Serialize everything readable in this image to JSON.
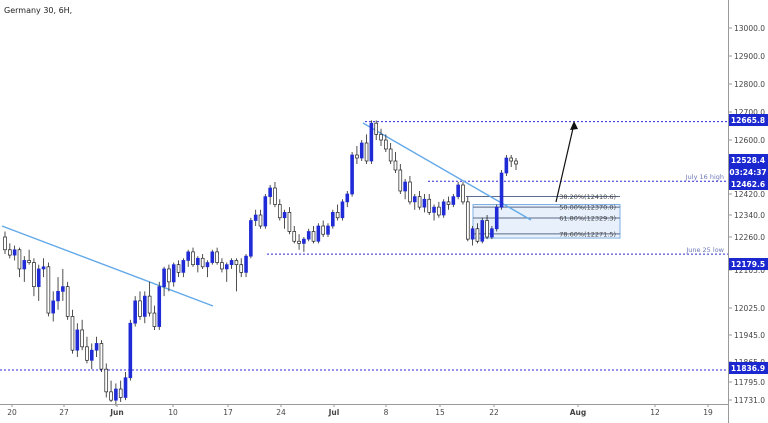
{
  "chart_data": {
    "type": "candlestick",
    "title": "Germany 30, 6H,",
    "y_axis": {
      "range": [
        11725,
        13090
      ],
      "ticks": [
        13000.0,
        12900.0,
        12800.0,
        12700.0,
        12600.0,
        12420.0,
        12340.0,
        12260.0,
        12105.0,
        12025.0,
        11945.0,
        11865.0,
        11795.0,
        11731.0
      ],
      "tick_labels": [
        "13000.0",
        "12900.0",
        "12800.0",
        "12700.0",
        "12600.0",
        "12420.0",
        "12340.0",
        "12260.0",
        "12105.0",
        "12025.0",
        "11945.0",
        "11865.0",
        "11795.0",
        "11731.0"
      ]
    },
    "x_axis": {
      "ticks": [
        "20",
        "27",
        "Jun",
        "10",
        "17",
        "24",
        "Jul",
        "8",
        "15",
        "22",
        "Aug",
        "12",
        "19"
      ],
      "bold_ticks": [
        "Jun",
        "Jul",
        "Aug"
      ]
    },
    "price_tags": [
      {
        "label": "12665.8",
        "value": 12665.8
      },
      {
        "label": "12528.4",
        "value": 12528.4
      },
      {
        "label": "03:24:37",
        "value": 12497
      },
      {
        "label": "12462.6",
        "value": 12462.6
      },
      {
        "label": "12179.5",
        "value": 12179.5
      },
      {
        "label": "11836.9",
        "value": 11836.9
      }
    ],
    "horizontal_levels": [
      {
        "value": 12665.8,
        "label": ""
      },
      {
        "value": 12462.6,
        "label": "July 16 high"
      },
      {
        "value": 12179.5,
        "label": "June 25 low"
      },
      {
        "value": 11836.9,
        "label": ""
      }
    ],
    "fibonacci": [
      {
        "label": "38.20%(12410.6)",
        "value": 12410.6
      },
      {
        "label": "50.00%(12370.0)",
        "value": 12370.0
      },
      {
        "label": "61.80%(12329.3)",
        "value": 12329.3
      },
      {
        "label": "78.60%(12271.5)",
        "value": 12271.5
      }
    ],
    "candles": [
      [
        12260,
        12280,
        12180,
        12200
      ],
      [
        12200,
        12230,
        12160,
        12175
      ],
      [
        12175,
        12220,
        12150,
        12200
      ],
      [
        12200,
        12210,
        12090,
        12110
      ],
      [
        12110,
        12170,
        12080,
        12150
      ],
      [
        12150,
        12200,
        12130,
        12140
      ],
      [
        12140,
        12160,
        12050,
        12070
      ],
      [
        12070,
        12130,
        12040,
        12110
      ],
      [
        12110,
        12160,
        12090,
        12120
      ],
      [
        12120,
        12140,
        12000,
        12010
      ],
      [
        12010,
        12060,
        11985,
        12040
      ],
      [
        12040,
        12090,
        12020,
        12060
      ],
      [
        12060,
        12110,
        12040,
        12070
      ],
      [
        12070,
        12080,
        11990,
        12000
      ],
      [
        12000,
        12020,
        11890,
        11900
      ],
      [
        11900,
        11980,
        11880,
        11960
      ],
      [
        11960,
        11990,
        11900,
        11910
      ],
      [
        11910,
        11940,
        11860,
        11870
      ],
      [
        11870,
        11920,
        11840,
        11900
      ],
      [
        11900,
        11940,
        11880,
        11920
      ],
      [
        11920,
        11930,
        11830,
        11840
      ],
      [
        11840,
        11860,
        11740,
        11760
      ],
      [
        11760,
        11800,
        11720,
        11730
      ],
      [
        11730,
        11790,
        11700,
        11770
      ],
      [
        11770,
        11800,
        11720,
        11740
      ],
      [
        11740,
        11830,
        11730,
        11810
      ],
      [
        11810,
        11990,
        11800,
        11980
      ],
      [
        11980,
        12050,
        11970,
        12040
      ],
      [
        12040,
        12060,
        11990,
        12000
      ],
      [
        12000,
        12060,
        11980,
        12050
      ],
      [
        12050,
        12080,
        12000,
        12010
      ],
      [
        12010,
        12030,
        11960,
        11970
      ],
      [
        11970,
        12080,
        11960,
        12070
      ],
      [
        12070,
        12120,
        12050,
        12110
      ],
      [
        12110,
        12130,
        12060,
        12080
      ],
      [
        12080,
        12140,
        12070,
        12130
      ],
      [
        12130,
        12150,
        12090,
        12100
      ],
      [
        12100,
        12160,
        12090,
        12150
      ],
      [
        12150,
        12200,
        12120,
        12190
      ],
      [
        12190,
        12210,
        12120,
        12130
      ],
      [
        12130,
        12170,
        12100,
        12160
      ],
      [
        12160,
        12180,
        12110,
        12120
      ],
      [
        12120,
        12150,
        12090,
        12140
      ],
      [
        12140,
        12200,
        12130,
        12190
      ],
      [
        12190,
        12210,
        12130,
        12140
      ],
      [
        12140,
        12160,
        12100,
        12110
      ],
      [
        12110,
        12140,
        12080,
        12130
      ],
      [
        12130,
        12160,
        12110,
        12150
      ],
      [
        12150,
        12160,
        12060,
        12130
      ],
      [
        12130,
        12160,
        12090,
        12100
      ],
      [
        12100,
        12180,
        12090,
        12170
      ],
      [
        12170,
        12330,
        12160,
        12320
      ],
      [
        12320,
        12360,
        12300,
        12340
      ],
      [
        12340,
        12360,
        12290,
        12300
      ],
      [
        12300,
        12420,
        12290,
        12410
      ],
      [
        12410,
        12450,
        12380,
        12440
      ],
      [
        12440,
        12460,
        12370,
        12380
      ],
      [
        12380,
        12400,
        12320,
        12330
      ],
      [
        12330,
        12360,
        12290,
        12350
      ],
      [
        12350,
        12370,
        12270,
        12280
      ],
      [
        12280,
        12300,
        12230,
        12240
      ],
      [
        12240,
        12270,
        12200,
        12230
      ],
      [
        12230,
        12260,
        12190,
        12250
      ],
      [
        12250,
        12290,
        12240,
        12280
      ],
      [
        12280,
        12300,
        12230,
        12240
      ],
      [
        12240,
        12310,
        12230,
        12300
      ],
      [
        12300,
        12320,
        12260,
        12270
      ],
      [
        12270,
        12310,
        12260,
        12300
      ],
      [
        12300,
        12360,
        12290,
        12350
      ],
      [
        12350,
        12380,
        12320,
        12330
      ],
      [
        12330,
        12400,
        12320,
        12390
      ],
      [
        12390,
        12430,
        12370,
        12420
      ],
      [
        12420,
        12560,
        12410,
        12550
      ],
      [
        12550,
        12580,
        12520,
        12540
      ],
      [
        12540,
        12600,
        12530,
        12590
      ],
      [
        12590,
        12620,
        12520,
        12530
      ],
      [
        12530,
        12670,
        12520,
        12660
      ],
      [
        12660,
        12670,
        12600,
        12620
      ],
      [
        12620,
        12640,
        12580,
        12600
      ],
      [
        12600,
        12620,
        12560,
        12570
      ],
      [
        12570,
        12590,
        12520,
        12530
      ],
      [
        12530,
        12560,
        12490,
        12500
      ],
      [
        12500,
        12520,
        12420,
        12430
      ],
      [
        12430,
        12470,
        12400,
        12460
      ],
      [
        12460,
        12480,
        12380,
        12390
      ],
      [
        12390,
        12420,
        12360,
        12410
      ],
      [
        12410,
        12430,
        12360,
        12370
      ],
      [
        12370,
        12420,
        12350,
        12400
      ],
      [
        12400,
        12420,
        12340,
        12350
      ],
      [
        12350,
        12380,
        12320,
        12370
      ],
      [
        12370,
        12390,
        12330,
        12340
      ],
      [
        12340,
        12400,
        12330,
        12390
      ],
      [
        12390,
        12410,
        12360,
        12380
      ],
      [
        12380,
        12420,
        12370,
        12410
      ],
      [
        12410,
        12460,
        12400,
        12450
      ],
      [
        12450,
        12460,
        12380,
        12390
      ],
      [
        12390,
        12410,
        12240,
        12250
      ],
      [
        12250,
        12300,
        12220,
        12290
      ],
      [
        12290,
        12310,
        12230,
        12240
      ],
      [
        12240,
        12330,
        12230,
        12320
      ],
      [
        12320,
        12340,
        12250,
        12260
      ],
      [
        12260,
        12300,
        12250,
        12290
      ],
      [
        12290,
        12380,
        12280,
        12370
      ],
      [
        12370,
        12500,
        12360,
        12490
      ],
      [
        12490,
        12550,
        12480,
        12540
      ],
      [
        12540,
        12550,
        12510,
        12530
      ],
      [
        12530,
        12540,
        12500,
        12520
      ]
    ]
  }
}
